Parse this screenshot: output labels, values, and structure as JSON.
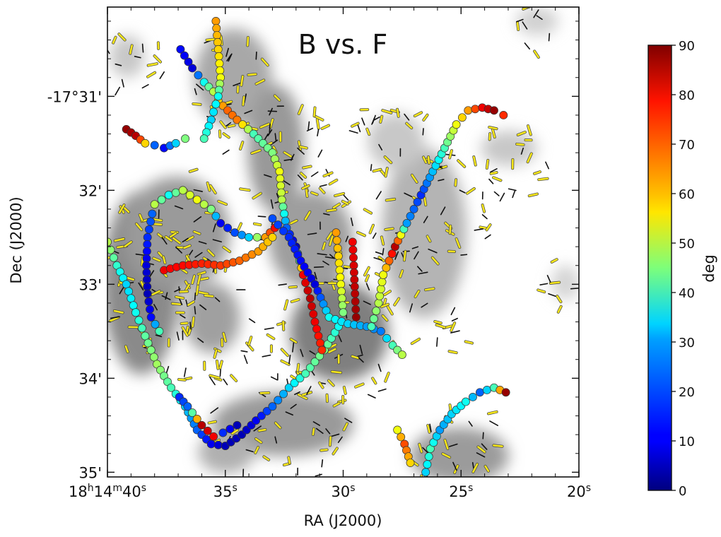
{
  "chart_data": {
    "type": "scatter",
    "title": "B vs. F",
    "xlabel": "RA (J2000)",
    "ylabel": "Dec (J2000)",
    "x_ticks": [
      {
        "value": 40,
        "label": "18h14m40s",
        "parts": [
          "18",
          "h",
          "14",
          "m",
          "40",
          "s"
        ]
      },
      {
        "value": 35,
        "label": "35s",
        "parts": [
          "35",
          "s"
        ]
      },
      {
        "value": 30,
        "label": "30s",
        "parts": [
          "30",
          "s"
        ]
      },
      {
        "value": 25,
        "label": "25s",
        "parts": [
          "25",
          "s"
        ]
      },
      {
        "value": 20,
        "label": "20s",
        "parts": [
          "20",
          "s"
        ]
      }
    ],
    "y_ticks": [
      {
        "value": 31,
        "label": "-17°31'"
      },
      {
        "value": 32,
        "label": "32'"
      },
      {
        "value": 33,
        "label": "33'"
      },
      {
        "value": 34,
        "label": "34'"
      },
      {
        "value": 35,
        "label": "35'"
      }
    ],
    "xlim": [
      40,
      20
    ],
    "ylim": [
      35.05,
      30.05
    ],
    "colorbar": {
      "label": "deg",
      "range": [
        0,
        90
      ],
      "ticks": [
        0,
        10,
        20,
        30,
        40,
        50,
        60,
        70,
        80,
        90
      ],
      "colormap": "jet"
    },
    "series": [
      {
        "points": [
          [
            40.0,
            32.55,
            50
          ],
          [
            39.6,
            32.8,
            38
          ],
          [
            39.2,
            33.0,
            30
          ],
          [
            38.8,
            33.3,
            35
          ],
          [
            38.4,
            33.55,
            42
          ],
          [
            37.9,
            33.85,
            48
          ],
          [
            37.3,
            34.1,
            40
          ],
          [
            36.7,
            34.3,
            30
          ],
          [
            36.2,
            34.55,
            20
          ],
          [
            35.6,
            34.7,
            10
          ],
          [
            35.0,
            34.72,
            5
          ],
          [
            34.3,
            34.6,
            5
          ],
          [
            33.7,
            34.45,
            10
          ],
          [
            33.0,
            34.3,
            20
          ],
          [
            32.3,
            34.1,
            30
          ],
          [
            31.6,
            33.95,
            40
          ],
          [
            30.8,
            33.7,
            45
          ],
          [
            30.2,
            33.45,
            35
          ]
        ]
      },
      {
        "points": [
          [
            38.1,
            32.25,
            20
          ],
          [
            38.3,
            32.5,
            15
          ],
          [
            38.35,
            32.8,
            8
          ],
          [
            38.3,
            33.1,
            5
          ],
          [
            38.15,
            33.35,
            12
          ],
          [
            37.8,
            33.5,
            40
          ]
        ]
      },
      {
        "points": [
          [
            36.95,
            34.2,
            15
          ],
          [
            36.6,
            34.3,
            20
          ],
          [
            36.0,
            34.5,
            85
          ],
          [
            35.5,
            34.62,
            80
          ],
          [
            35.1,
            34.58,
            15
          ],
          [
            34.5,
            34.5,
            5
          ]
        ]
      },
      {
        "points": [
          [
            36.9,
            30.5,
            12
          ],
          [
            36.4,
            30.7,
            8
          ],
          [
            35.9,
            30.85,
            35
          ],
          [
            35.5,
            30.95,
            50
          ],
          [
            35.3,
            31.05,
            60
          ],
          [
            34.9,
            31.15,
            70
          ],
          [
            34.5,
            31.25,
            68
          ],
          [
            33.8,
            31.4,
            40
          ],
          [
            33.0,
            31.6,
            45
          ],
          [
            32.7,
            31.8,
            55
          ],
          [
            32.6,
            32.1,
            50
          ],
          [
            32.4,
            32.4,
            20
          ],
          [
            32.0,
            32.6,
            5
          ],
          [
            31.7,
            32.9,
            80
          ],
          [
            31.4,
            33.15,
            85
          ],
          [
            31.2,
            33.4,
            80
          ],
          [
            30.9,
            33.7,
            75
          ]
        ]
      },
      {
        "points": [
          [
            35.4,
            30.2,
            65
          ],
          [
            35.3,
            30.5,
            60
          ],
          [
            35.2,
            30.8,
            55
          ],
          [
            35.3,
            31.0,
            35
          ],
          [
            35.6,
            31.25,
            30
          ],
          [
            35.9,
            31.45,
            40
          ]
        ]
      },
      {
        "points": [
          [
            39.2,
            31.35,
            88
          ],
          [
            38.8,
            31.42,
            85
          ],
          [
            38.4,
            31.5,
            60
          ],
          [
            38.0,
            31.52,
            20
          ],
          [
            37.6,
            31.55,
            12
          ],
          [
            37.1,
            31.5,
            30
          ],
          [
            36.7,
            31.45,
            45
          ]
        ]
      },
      {
        "points": [
          [
            38.0,
            32.15,
            50
          ],
          [
            37.4,
            32.05,
            35
          ],
          [
            36.8,
            32.0,
            50
          ],
          [
            36.2,
            32.1,
            55
          ],
          [
            35.6,
            32.2,
            45
          ],
          [
            35.2,
            32.35,
            10
          ],
          [
            34.6,
            32.45,
            18
          ],
          [
            34.0,
            32.5,
            30
          ],
          [
            33.3,
            32.5,
            65
          ],
          [
            32.9,
            32.4,
            78
          ]
        ]
      },
      {
        "points": [
          [
            37.6,
            32.85,
            80
          ],
          [
            36.8,
            32.8,
            78
          ],
          [
            36.0,
            32.78,
            76
          ],
          [
            35.2,
            32.8,
            74
          ],
          [
            34.4,
            32.75,
            70
          ],
          [
            33.6,
            32.65,
            65
          ],
          [
            33.0,
            32.5,
            60
          ]
        ]
      },
      {
        "points": [
          [
            33.0,
            32.3,
            18
          ],
          [
            32.3,
            32.5,
            15
          ],
          [
            31.8,
            32.75,
            12
          ],
          [
            31.2,
            33.0,
            8
          ],
          [
            30.6,
            33.35,
            35
          ],
          [
            29.8,
            33.42,
            30
          ],
          [
            29.0,
            33.45,
            25
          ],
          [
            28.4,
            33.5,
            22
          ],
          [
            27.9,
            33.65,
            40
          ],
          [
            27.5,
            33.75,
            50
          ]
        ]
      },
      {
        "points": [
          [
            30.3,
            32.45,
            65
          ],
          [
            30.2,
            32.7,
            60
          ],
          [
            30.1,
            33.0,
            55
          ],
          [
            30.0,
            33.3,
            45
          ]
        ]
      },
      {
        "points": [
          [
            29.6,
            32.55,
            80
          ],
          [
            29.55,
            32.8,
            82
          ],
          [
            29.5,
            33.1,
            85
          ],
          [
            29.45,
            33.35,
            88
          ]
        ]
      },
      {
        "points": [
          [
            28.8,
            33.45,
            40
          ],
          [
            28.5,
            33.2,
            50
          ],
          [
            28.3,
            32.9,
            55
          ],
          [
            27.8,
            32.6,
            85
          ],
          [
            27.3,
            32.35,
            25
          ],
          [
            26.7,
            32.05,
            15
          ],
          [
            26.2,
            31.8,
            28
          ],
          [
            25.7,
            31.55,
            40
          ],
          [
            25.2,
            31.3,
            55
          ],
          [
            24.7,
            31.15,
            65
          ],
          [
            24.1,
            31.12,
            80
          ],
          [
            23.6,
            31.15,
            88
          ],
          [
            23.2,
            31.2,
            75
          ]
        ]
      },
      {
        "points": [
          [
            26.5,
            35.0,
            30
          ],
          [
            26.3,
            34.75,
            40
          ],
          [
            25.9,
            34.55,
            25
          ],
          [
            25.4,
            34.38,
            30
          ],
          [
            24.8,
            34.25,
            35
          ],
          [
            24.2,
            34.15,
            20
          ],
          [
            23.6,
            34.1,
            40
          ],
          [
            23.1,
            34.15,
            88
          ]
        ]
      },
      {
        "points": [
          [
            27.7,
            34.55,
            55
          ],
          [
            27.4,
            34.7,
            72
          ],
          [
            27.15,
            34.9,
            60
          ]
        ]
      }
    ]
  }
}
